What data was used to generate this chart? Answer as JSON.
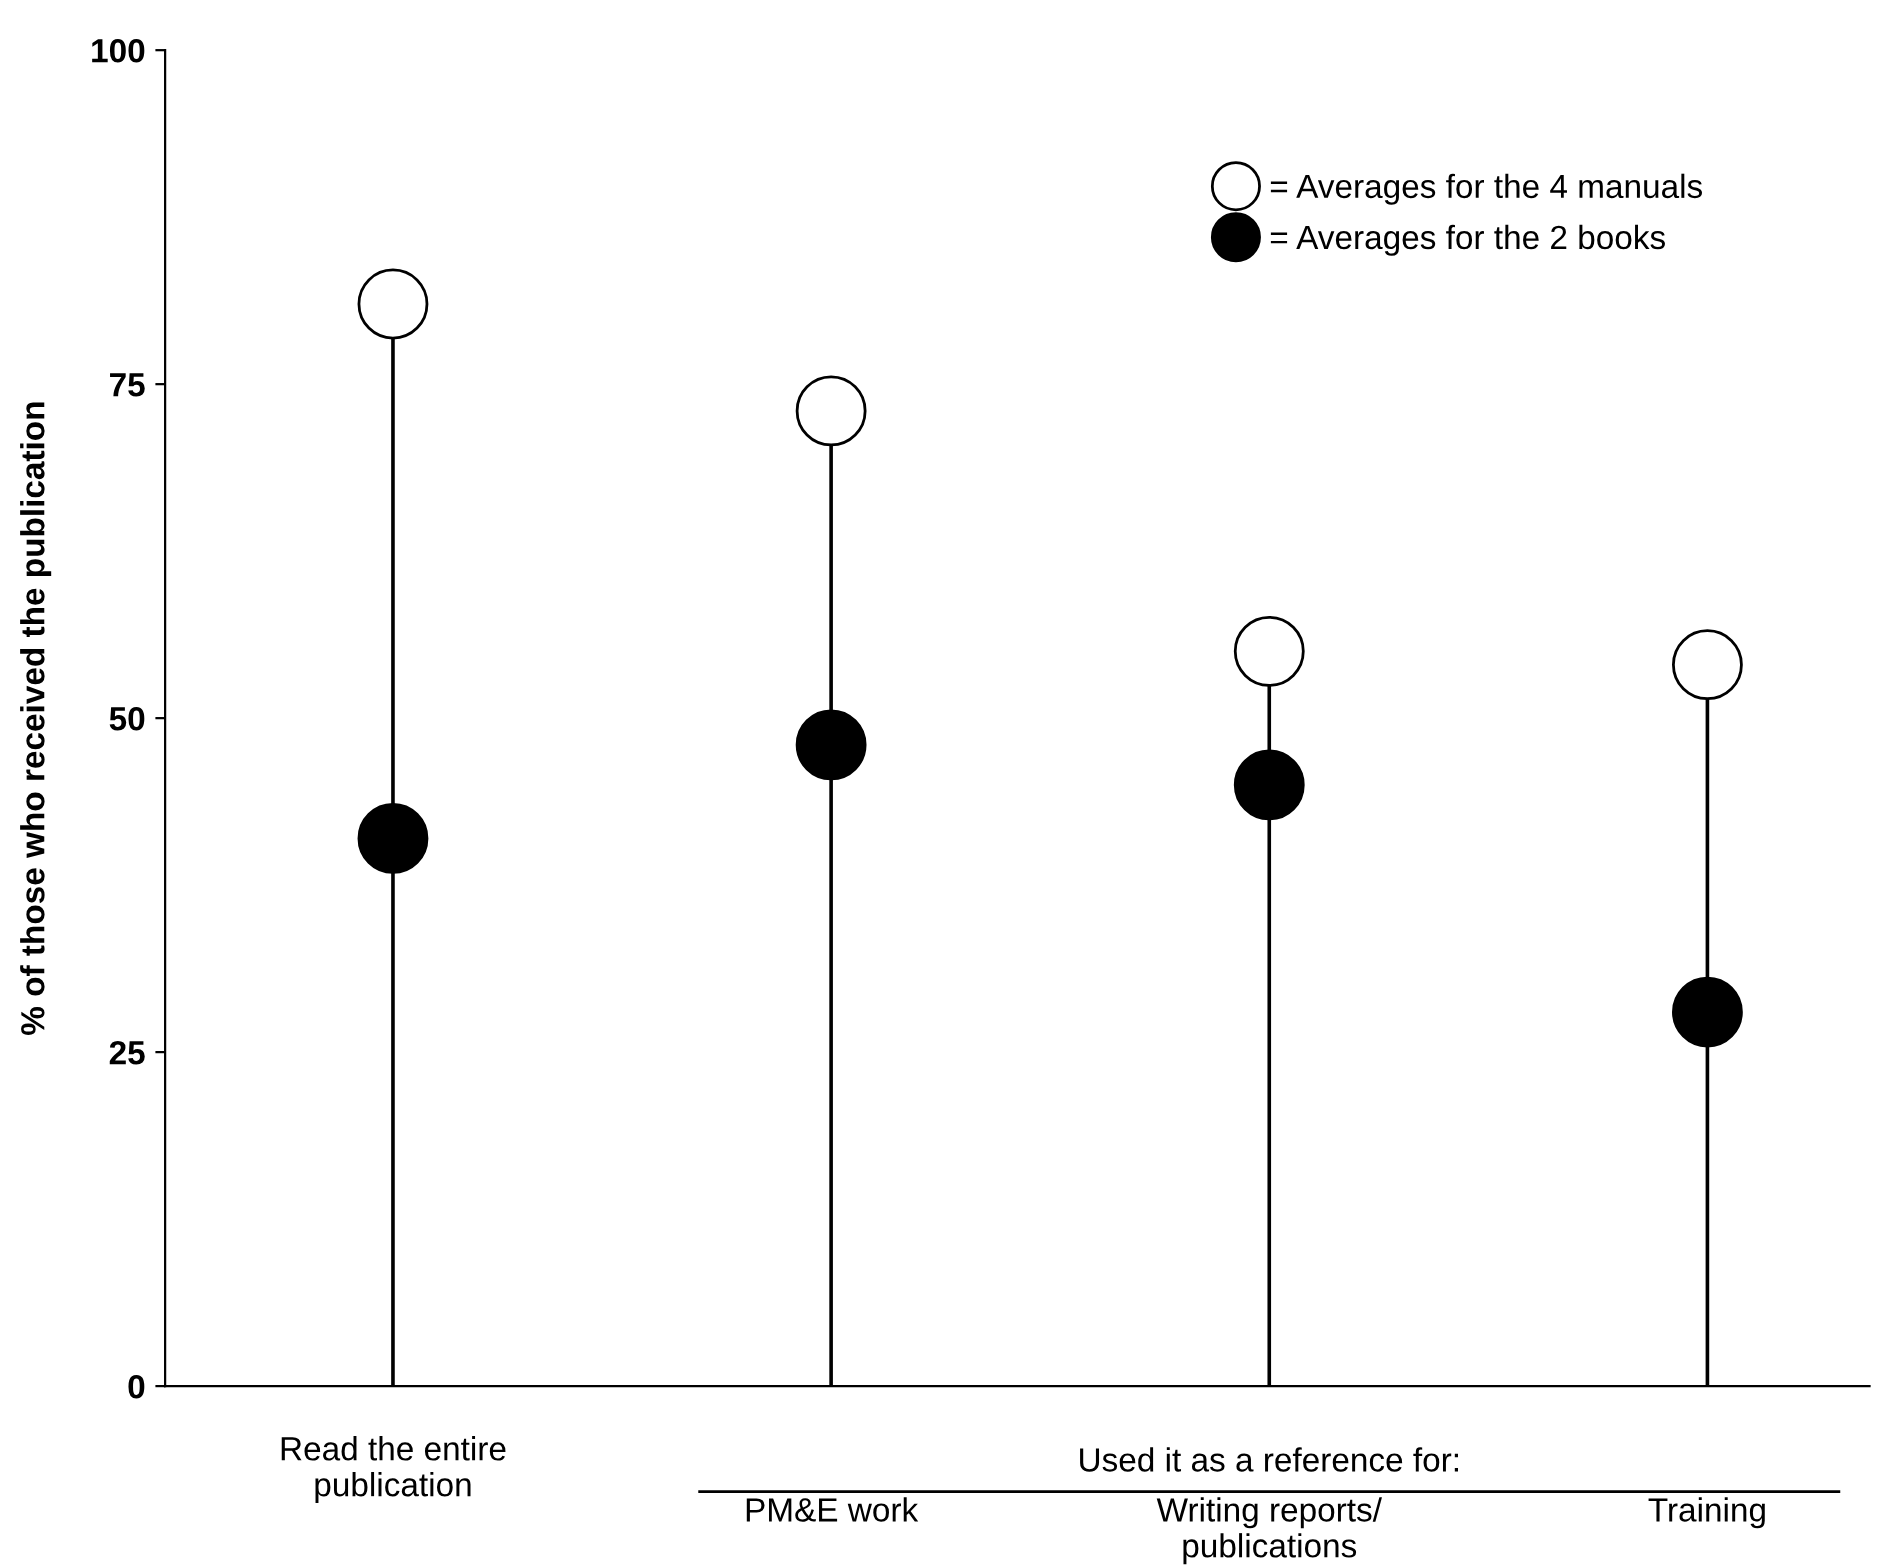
{
  "chart_data": {
    "type": "lollipop",
    "ylabel": "% of those who received the publication",
    "categories": [
      "Read the entire\npublication",
      "PM&E work",
      "Writing reports/\npublications",
      "Training"
    ],
    "series": [
      {
        "name": "= Averages for the 4 manuals",
        "color": "#ffffff",
        "values": [
          81,
          73,
          55,
          54
        ]
      },
      {
        "name": "= Averages for the 2 books",
        "color": "#000000",
        "values": [
          41,
          48,
          45,
          28
        ]
      }
    ],
    "annotations": [
      "Used it as a reference for:"
    ],
    "ylim": [
      0,
      100
    ],
    "yticks": [
      0,
      25,
      50,
      75,
      100
    ],
    "legend": "top right",
    "marker": "circle"
  }
}
